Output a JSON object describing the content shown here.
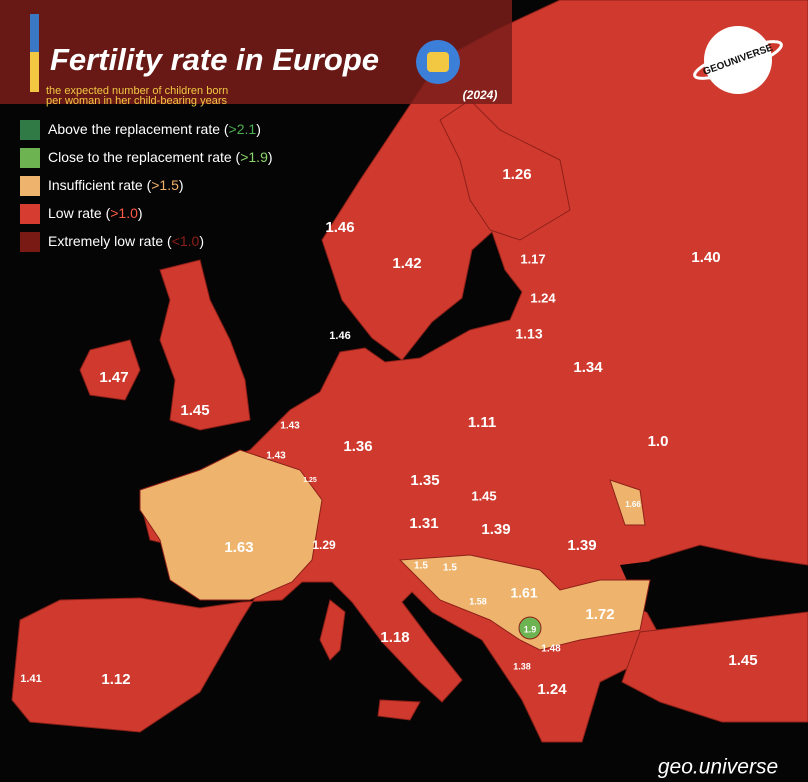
{
  "header": {
    "title": "Fertility rate in Europe",
    "subtitle_line1": "the expected number of children born",
    "subtitle_line2": "per woman in her child-bearing years",
    "year": "(2024)",
    "brand": "GEOUNIVERSE"
  },
  "legend": [
    {
      "prefix": "Above the replacement rate (",
      "threshold": ">2.1",
      "suffix": ")",
      "color": "#2f7a45",
      "threshold_color": "#4caf50"
    },
    {
      "prefix": "Close to the replacement rate (",
      "threshold": ">1.9",
      "suffix": ")",
      "color": "#6db352",
      "threshold_color": "#8bd36a"
    },
    {
      "prefix": "Insufficient rate (",
      "threshold": ">1.5",
      "suffix": ")",
      "color": "#eeb46e",
      "threshold_color": "#f3b26a"
    },
    {
      "prefix": "Low rate (",
      "threshold": ">1.0",
      "suffix": ")",
      "color": "#d63c2f",
      "threshold_color": "#ff5a44"
    },
    {
      "prefix": "Extremely low rate (",
      "threshold": "<1.0",
      "suffix": ")",
      "color": "#7a1a15",
      "threshold_color": "#8e1f18"
    }
  ],
  "map": {
    "labels": [
      "1.26",
      "1.46",
      "1.42",
      "1.17",
      "1.40",
      "1.24",
      "1.46",
      "1.13",
      "1.47",
      "1.34",
      "1.45",
      "1.43",
      "1.11",
      "1.36",
      "1.0",
      "1.43",
      "1.25",
      "1.35",
      "1.45",
      "1.66",
      "1.31",
      "1.39",
      "1.63",
      "1.29",
      "1.39",
      "1.5",
      "1.5",
      "1.61",
      "1.58",
      "1.72",
      "1.9",
      "1.18",
      "1.48",
      "1.38",
      "1.45",
      "1.41",
      "1.12",
      "1.24"
    ]
  },
  "footer": {
    "handle": "geo.universe"
  }
}
